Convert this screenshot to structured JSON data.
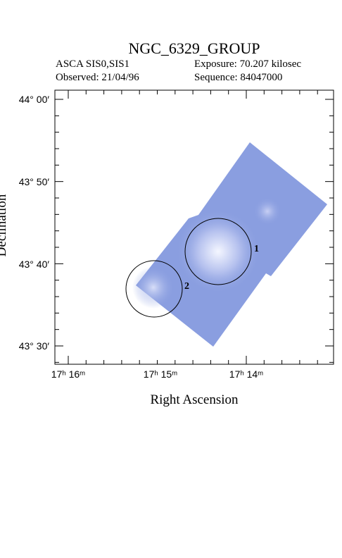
{
  "header": {
    "title": "NGC_6329_GROUP",
    "instrument": "ASCA SIS0,SIS1",
    "exposure": "Exposure: 70.207 kilosec",
    "observed": "Observed: 21/04/96",
    "sequence": "Sequence: 84047000"
  },
  "axes": {
    "x_label": "Right Ascension",
    "y_label": "Declination",
    "y_tick_labels": [
      "44° 00′",
      "43° 50′",
      "43° 40′",
      "43° 30′"
    ],
    "x_tick_labels": [
      "17ʰ 16ᵐ",
      "17ʰ 15ᵐ",
      "17ʰ 14ᵐ"
    ]
  },
  "regions": [
    {
      "label": "1"
    },
    {
      "label": "2"
    }
  ]
}
